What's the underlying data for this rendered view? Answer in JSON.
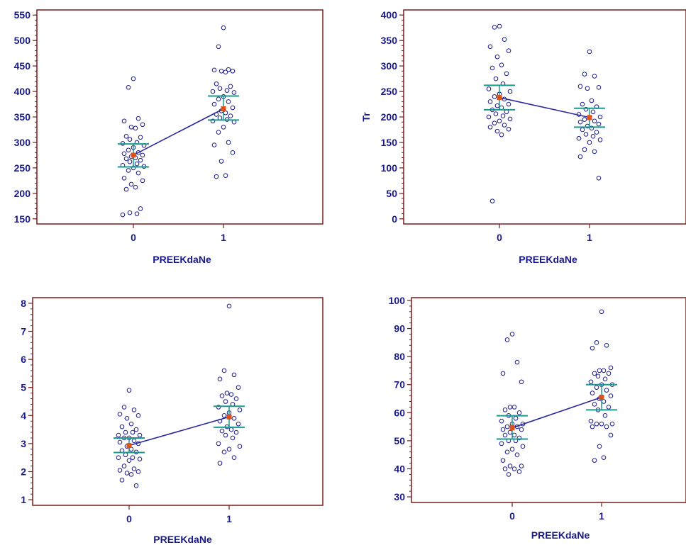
{
  "colors": {
    "frame": "#7a1a1a",
    "text": "#1a1a8c",
    "point": "#1a1a8c",
    "mean_line": "#2a2aa0",
    "ci": "#1a9a8c",
    "mean": "#e0501a"
  },
  "chart_data": [
    {
      "type": "scatter",
      "subtype": "dot-plot-with-means",
      "xlabel": "PREEKdaNe",
      "ylabel": "",
      "categories": [
        "0",
        "1"
      ],
      "yticks": [
        150,
        200,
        250,
        300,
        350,
        400,
        450,
        500,
        550
      ],
      "ylim": [
        140,
        560
      ],
      "minor_step": 10,
      "groups": [
        {
          "x": "0",
          "values": [
            425,
            408,
            347,
            342,
            335,
            330,
            328,
            312,
            310,
            306,
            300,
            298,
            294,
            290,
            285,
            280,
            278,
            275,
            272,
            270,
            268,
            265,
            262,
            258,
            255,
            253,
            250,
            245,
            240,
            230,
            225,
            218,
            212,
            208,
            170,
            162,
            160,
            158
          ],
          "mean": 275,
          "ci": [
            252,
            297
          ]
        },
        {
          "x": "1",
          "values": [
            525,
            488,
            443,
            442,
            440,
            440,
            438,
            415,
            410,
            406,
            402,
            400,
            398,
            390,
            385,
            380,
            375,
            368,
            362,
            358,
            355,
            352,
            348,
            345,
            342,
            340,
            330,
            320,
            300,
            295,
            280,
            263,
            235,
            233
          ],
          "mean": 366,
          "ci": [
            344,
            391
          ]
        }
      ]
    },
    {
      "type": "scatter",
      "subtype": "dot-plot-with-means",
      "xlabel": "PREEKdaNe",
      "ylabel": "Tr",
      "categories": [
        "0",
        "1"
      ],
      "yticks": [
        0,
        50,
        100,
        150,
        200,
        250,
        300,
        350,
        400
      ],
      "ylim": [
        -10,
        410
      ],
      "minor_step": 10,
      "groups": [
        {
          "x": "0",
          "values": [
            378,
            376,
            352,
            338,
            330,
            318,
            302,
            296,
            285,
            275,
            265,
            255,
            250,
            245,
            240,
            235,
            230,
            225,
            222,
            218,
            214,
            210,
            206,
            202,
            200,
            196,
            192,
            188,
            184,
            180,
            176,
            172,
            165,
            35
          ],
          "mean": 238,
          "ci": [
            214,
            262
          ]
        },
        {
          "x": "1",
          "values": [
            328,
            284,
            280,
            260,
            258,
            256,
            232,
            225,
            220,
            215,
            210,
            205,
            200,
            198,
            195,
            192,
            190,
            186,
            182,
            178,
            175,
            170,
            166,
            162,
            158,
            155,
            150,
            136,
            132,
            122,
            80
          ],
          "mean": 199,
          "ci": [
            180,
            217
          ]
        }
      ]
    },
    {
      "type": "scatter",
      "subtype": "dot-plot-with-means",
      "xlabel": "PREEKdaNe",
      "ylabel": "",
      "categories": [
        "0",
        "1"
      ],
      "yticks": [
        1,
        2,
        3,
        4,
        5,
        6,
        7,
        8
      ],
      "ylim": [
        0.8,
        8.2
      ],
      "minor_step": 0.2,
      "groups": [
        {
          "x": "0",
          "values": [
            4.9,
            4.3,
            4.2,
            4.05,
            4.0,
            3.9,
            3.7,
            3.6,
            3.5,
            3.4,
            3.4,
            3.3,
            3.3,
            3.2,
            3.2,
            3.1,
            3.05,
            3.0,
            2.9,
            2.8,
            2.75,
            2.7,
            2.6,
            2.5,
            2.5,
            2.45,
            2.4,
            2.2,
            2.1,
            2.05,
            2.0,
            1.95,
            1.9,
            1.7,
            1.5
          ],
          "mean": 2.93,
          "ci": [
            2.68,
            3.2
          ]
        },
        {
          "x": "1",
          "values": [
            7.9,
            5.6,
            5.45,
            5.3,
            5.0,
            4.8,
            4.75,
            4.7,
            4.6,
            4.5,
            4.4,
            4.3,
            4.2,
            4.1,
            4.0,
            3.9,
            3.8,
            3.7,
            3.6,
            3.5,
            3.45,
            3.4,
            3.3,
            3.2,
            3.0,
            2.9,
            2.8,
            2.7,
            2.5,
            2.3
          ],
          "mean": 3.95,
          "ci": [
            3.58,
            4.33
          ]
        }
      ]
    },
    {
      "type": "scatter",
      "subtype": "dot-plot-with-means",
      "xlabel": "PREEKdaNe",
      "ylabel": "",
      "categories": [
        "0",
        "1"
      ],
      "yticks": [
        30,
        40,
        50,
        60,
        70,
        80,
        90,
        100
      ],
      "ylim": [
        28,
        101
      ],
      "minor_step": 2,
      "groups": [
        {
          "x": "0",
          "values": [
            88,
            86,
            78,
            74,
            71,
            62,
            62,
            61,
            60,
            59,
            58,
            57,
            56,
            56,
            55,
            55,
            54,
            54,
            53,
            52,
            52,
            51,
            50,
            50,
            49,
            48,
            47,
            46,
            45,
            43,
            41,
            41,
            40,
            40,
            39,
            38
          ],
          "mean": 54.6,
          "ci": [
            50.6,
            58.9
          ]
        },
        {
          "x": "1",
          "values": [
            96,
            85,
            84,
            83,
            76,
            75,
            75,
            74,
            74,
            73,
            72,
            71,
            70,
            70,
            69,
            68,
            67,
            66,
            65,
            64,
            63,
            62,
            61,
            59,
            57,
            56,
            56,
            56,
            55,
            55,
            52,
            48,
            44,
            43
          ],
          "mean": 65.5,
          "ci": [
            61,
            70
          ]
        }
      ]
    }
  ]
}
